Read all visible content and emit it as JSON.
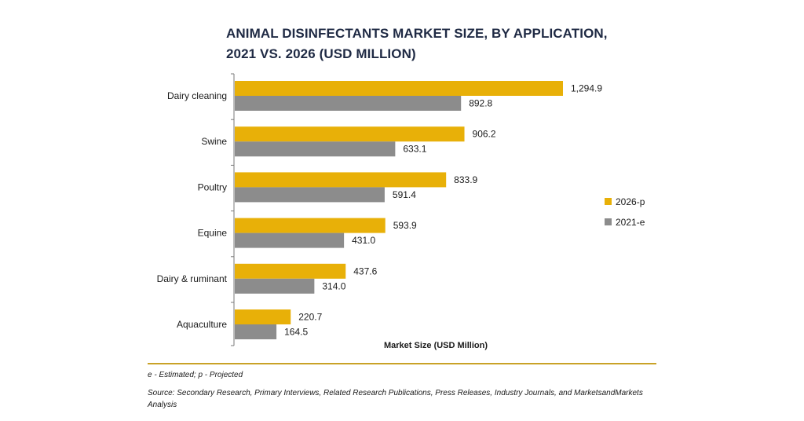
{
  "chart_data": {
    "type": "bar",
    "orientation": "horizontal",
    "title_lines": [
      "ANIMAL DISINFECTANTS MARKET SIZE, BY APPLICATION,",
      "2021 VS. 2026 (USD MILLION)"
    ],
    "xlabel": "Market Size (USD Million)",
    "ylabel": "",
    "categories": [
      "Dairy cleaning",
      "Swine",
      "Poultry",
      "Equine",
      "Dairy & ruminant",
      "Aquaculture"
    ],
    "series": [
      {
        "name": "2026-p",
        "color": "#e8b008",
        "values": [
          1294.9,
          906.2,
          833.9,
          593.9,
          437.6,
          220.7
        ],
        "labels": [
          "1,294.9",
          "906.2",
          "833.9",
          "593.9",
          "437.6",
          "220.7"
        ]
      },
      {
        "name": "2021-e",
        "color": "#8c8c8c",
        "values": [
          892.8,
          633.1,
          591.4,
          431.0,
          314.0,
          164.5
        ],
        "labels": [
          "892.8",
          "633.1",
          "591.4",
          "431.0",
          "314.0",
          "164.5"
        ]
      }
    ],
    "xlim": [
      0,
      1300
    ],
    "grid": false,
    "legend_position": "right"
  },
  "notes": {
    "abbreviations": "e - Estimated; p - Projected",
    "source": "Source: Secondary Research, Primary Interviews, Related Research Publications, Press Releases, Industry Journals, and MarketsandMarkets Analysis"
  }
}
